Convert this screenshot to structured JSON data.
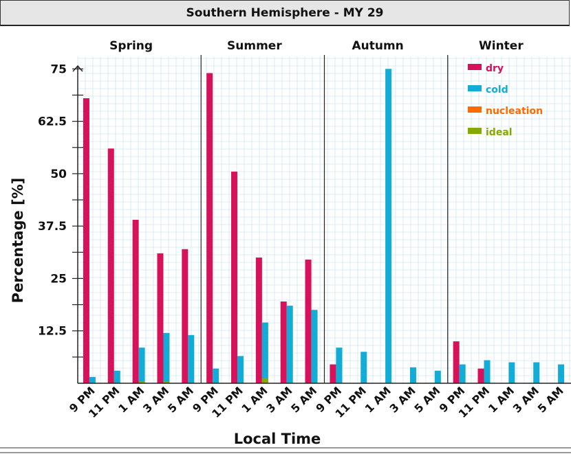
{
  "page_title": "Southern Hemisphere - MY 29",
  "colors": {
    "dry": "#d6125a",
    "cold": "#12acd6",
    "nucleation": "#ff6a00",
    "ideal": "#86a800",
    "grid": "#cfe6f2"
  },
  "chart_data": {
    "type": "bar",
    "title": "Southern Hemisphere - MY 29",
    "xlabel": "Local Time",
    "ylabel": "Percentage [%]",
    "ylim": [
      0,
      78
    ],
    "yticks": [
      12.5,
      25,
      37.5,
      50,
      62.5,
      75
    ],
    "ytick_labels": [
      "12.5",
      "25",
      "37.5",
      "50",
      "62.5",
      "75"
    ],
    "categories": [
      "9 PM",
      "11 PM",
      "1 AM",
      "3 AM",
      "5 AM"
    ],
    "legend": {
      "position": "top-right",
      "entries": [
        "dry",
        "cold",
        "nucleation",
        "ideal"
      ]
    },
    "grid": true,
    "panels": [
      {
        "name": "Spring",
        "series": [
          {
            "name": "dry",
            "values": [
              68,
              56,
              39,
              31,
              32
            ]
          },
          {
            "name": "cold",
            "values": [
              1.5,
              3,
              8.5,
              12,
              11.5
            ]
          },
          {
            "name": "nucleation",
            "values": [
              0,
              0,
              0,
              0,
              0
            ]
          },
          {
            "name": "ideal",
            "values": [
              0,
              0,
              0.5,
              0.5,
              0
            ]
          }
        ]
      },
      {
        "name": "Summer",
        "series": [
          {
            "name": "dry",
            "values": [
              74,
              50.5,
              30,
              19.5,
              29.5
            ]
          },
          {
            "name": "cold",
            "values": [
              3.5,
              6.5,
              14.5,
              18.5,
              17.5
            ]
          },
          {
            "name": "nucleation",
            "values": [
              0,
              0,
              0,
              0,
              0
            ]
          },
          {
            "name": "ideal",
            "values": [
              0,
              0,
              1.2,
              0,
              0
            ]
          }
        ]
      },
      {
        "name": "Autumn",
        "series": [
          {
            "name": "dry",
            "values": [
              4.5,
              0,
              0,
              0,
              0
            ]
          },
          {
            "name": "cold",
            "values": [
              8.5,
              7.5,
              75,
              3.8,
              3
            ]
          },
          {
            "name": "nucleation",
            "values": [
              0,
              0,
              0,
              0,
              0
            ]
          },
          {
            "name": "ideal",
            "values": [
              0,
              0,
              0,
              0,
              0
            ]
          }
        ]
      },
      {
        "name": "Winter",
        "series": [
          {
            "name": "dry",
            "values": [
              10,
              3.5,
              0,
              0,
              0
            ]
          },
          {
            "name": "cold",
            "values": [
              4.5,
              5.5,
              5,
              5,
              4.5
            ]
          },
          {
            "name": "nucleation",
            "values": [
              0,
              0,
              0,
              0,
              0
            ]
          },
          {
            "name": "ideal",
            "values": [
              0,
              0,
              0,
              0,
              0
            ]
          }
        ]
      }
    ]
  }
}
